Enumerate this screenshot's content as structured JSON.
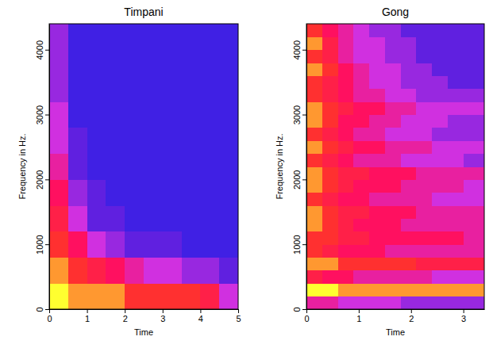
{
  "chart_data": [
    {
      "type": "heatmap",
      "title": "Timpani",
      "x_label": "Time",
      "y_label": "Frequency in Hz.",
      "xlim": [
        0,
        5
      ],
      "ylim": [
        0,
        4400
      ],
      "xticks": [
        0,
        1,
        2,
        3,
        4,
        5
      ],
      "yticks": [
        0,
        1000,
        2000,
        3000,
        4000
      ],
      "zlim": [
        0,
        10
      ],
      "colors": [
        "#2020e8",
        "#6020e0",
        "#d030e0",
        "#ff1060",
        "#ff3030",
        "#ffff30"
      ],
      "x_edges": [
        0,
        0.5,
        1,
        1.5,
        2,
        2.5,
        3,
        3.5,
        4,
        4.5,
        5
      ],
      "y_edges": [
        0,
        400,
        800,
        1200,
        1600,
        2000,
        2400,
        2800,
        3200,
        3600,
        4000,
        4400
      ],
      "cells": [
        [
          10,
          9,
          9,
          9,
          8,
          8,
          8,
          8,
          7,
          4
        ],
        [
          9,
          8,
          7,
          6,
          5,
          4,
          4,
          3,
          3,
          2
        ],
        [
          8,
          6,
          4,
          3,
          2,
          2,
          2,
          1,
          1,
          1
        ],
        [
          7,
          4,
          2,
          2,
          1,
          1,
          1,
          1,
          1,
          1
        ],
        [
          6,
          3,
          2,
          1,
          1,
          1,
          1,
          1,
          1,
          1
        ],
        [
          5,
          2,
          1,
          1,
          1,
          1,
          1,
          1,
          1,
          1
        ],
        [
          4,
          2,
          1,
          1,
          1,
          1,
          1,
          1,
          1,
          1
        ],
        [
          4,
          1,
          1,
          1,
          1,
          1,
          1,
          1,
          1,
          1
        ],
        [
          3,
          1,
          1,
          1,
          1,
          1,
          1,
          1,
          1,
          1
        ],
        [
          3,
          1,
          1,
          1,
          1,
          1,
          1,
          1,
          1,
          1
        ],
        [
          3,
          1,
          1,
          1,
          1,
          1,
          1,
          1,
          1,
          1
        ]
      ]
    },
    {
      "type": "heatmap",
      "title": "Gong",
      "x_label": "Time",
      "y_label": "Frequency in Hz.",
      "xlim": [
        0,
        3.4
      ],
      "ylim": [
        0,
        4400
      ],
      "xticks": [
        0,
        1,
        2,
        3
      ],
      "yticks": [
        0,
        1000,
        2000,
        3000,
        4000
      ],
      "zlim": [
        0,
        10
      ],
      "colors": [
        "#2020e8",
        "#6020e0",
        "#d030e0",
        "#ff1060",
        "#ff3030",
        "#ffff30"
      ],
      "x_edges": [
        0,
        0.3,
        0.6,
        0.9,
        1.2,
        1.5,
        1.8,
        2.1,
        2.4,
        2.7,
        3.0,
        3.4
      ],
      "y_edges": [
        0,
        200,
        400,
        600,
        800,
        1000,
        1200,
        1400,
        1600,
        1800,
        2000,
        2200,
        2400,
        2600,
        2800,
        3000,
        3200,
        3400,
        3600,
        3800,
        4000,
        4200,
        4400
      ],
      "cells": [
        [
          5,
          5,
          4,
          4,
          4,
          4,
          3,
          3,
          3,
          3,
          3
        ],
        [
          10,
          10,
          9,
          9,
          9,
          9,
          9,
          9,
          9,
          9,
          9
        ],
        [
          7,
          6,
          6,
          5,
          5,
          5,
          5,
          5,
          4,
          4,
          4
        ],
        [
          9,
          9,
          8,
          8,
          8,
          8,
          8,
          7,
          7,
          7,
          7
        ],
        [
          8,
          7,
          6,
          6,
          6,
          5,
          5,
          5,
          5,
          5,
          5
        ],
        [
          8,
          8,
          7,
          7,
          6,
          6,
          6,
          6,
          6,
          6,
          5
        ],
        [
          9,
          8,
          7,
          6,
          6,
          6,
          5,
          5,
          5,
          5,
          5
        ],
        [
          9,
          8,
          7,
          7,
          6,
          6,
          6,
          5,
          5,
          5,
          5
        ],
        [
          8,
          7,
          6,
          6,
          5,
          5,
          5,
          5,
          4,
          4,
          4
        ],
        [
          9,
          8,
          7,
          6,
          6,
          6,
          5,
          5,
          5,
          5,
          4
        ],
        [
          9,
          8,
          7,
          7,
          6,
          6,
          6,
          5,
          5,
          5,
          5
        ],
        [
          8,
          7,
          6,
          5,
          5,
          5,
          4,
          4,
          4,
          4,
          3
        ],
        [
          9,
          8,
          7,
          6,
          6,
          5,
          5,
          5,
          4,
          4,
          4
        ],
        [
          8,
          7,
          6,
          5,
          5,
          4,
          4,
          4,
          3,
          3,
          3
        ],
        [
          9,
          8,
          6,
          6,
          5,
          5,
          4,
          4,
          4,
          3,
          3
        ],
        [
          9,
          8,
          7,
          6,
          6,
          5,
          5,
          4,
          4,
          4,
          4
        ],
        [
          8,
          7,
          6,
          5,
          5,
          4,
          4,
          3,
          3,
          3,
          3
        ],
        [
          8,
          7,
          6,
          5,
          4,
          4,
          3,
          3,
          3,
          2,
          2
        ],
        [
          9,
          8,
          6,
          5,
          4,
          4,
          3,
          3,
          2,
          2,
          2
        ],
        [
          8,
          7,
          5,
          4,
          4,
          3,
          3,
          2,
          2,
          2,
          2
        ],
        [
          9,
          7,
          5,
          4,
          4,
          3,
          3,
          2,
          2,
          2,
          2
        ],
        [
          8,
          6,
          5,
          4,
          3,
          3,
          2,
          2,
          2,
          2,
          2
        ]
      ]
    }
  ]
}
